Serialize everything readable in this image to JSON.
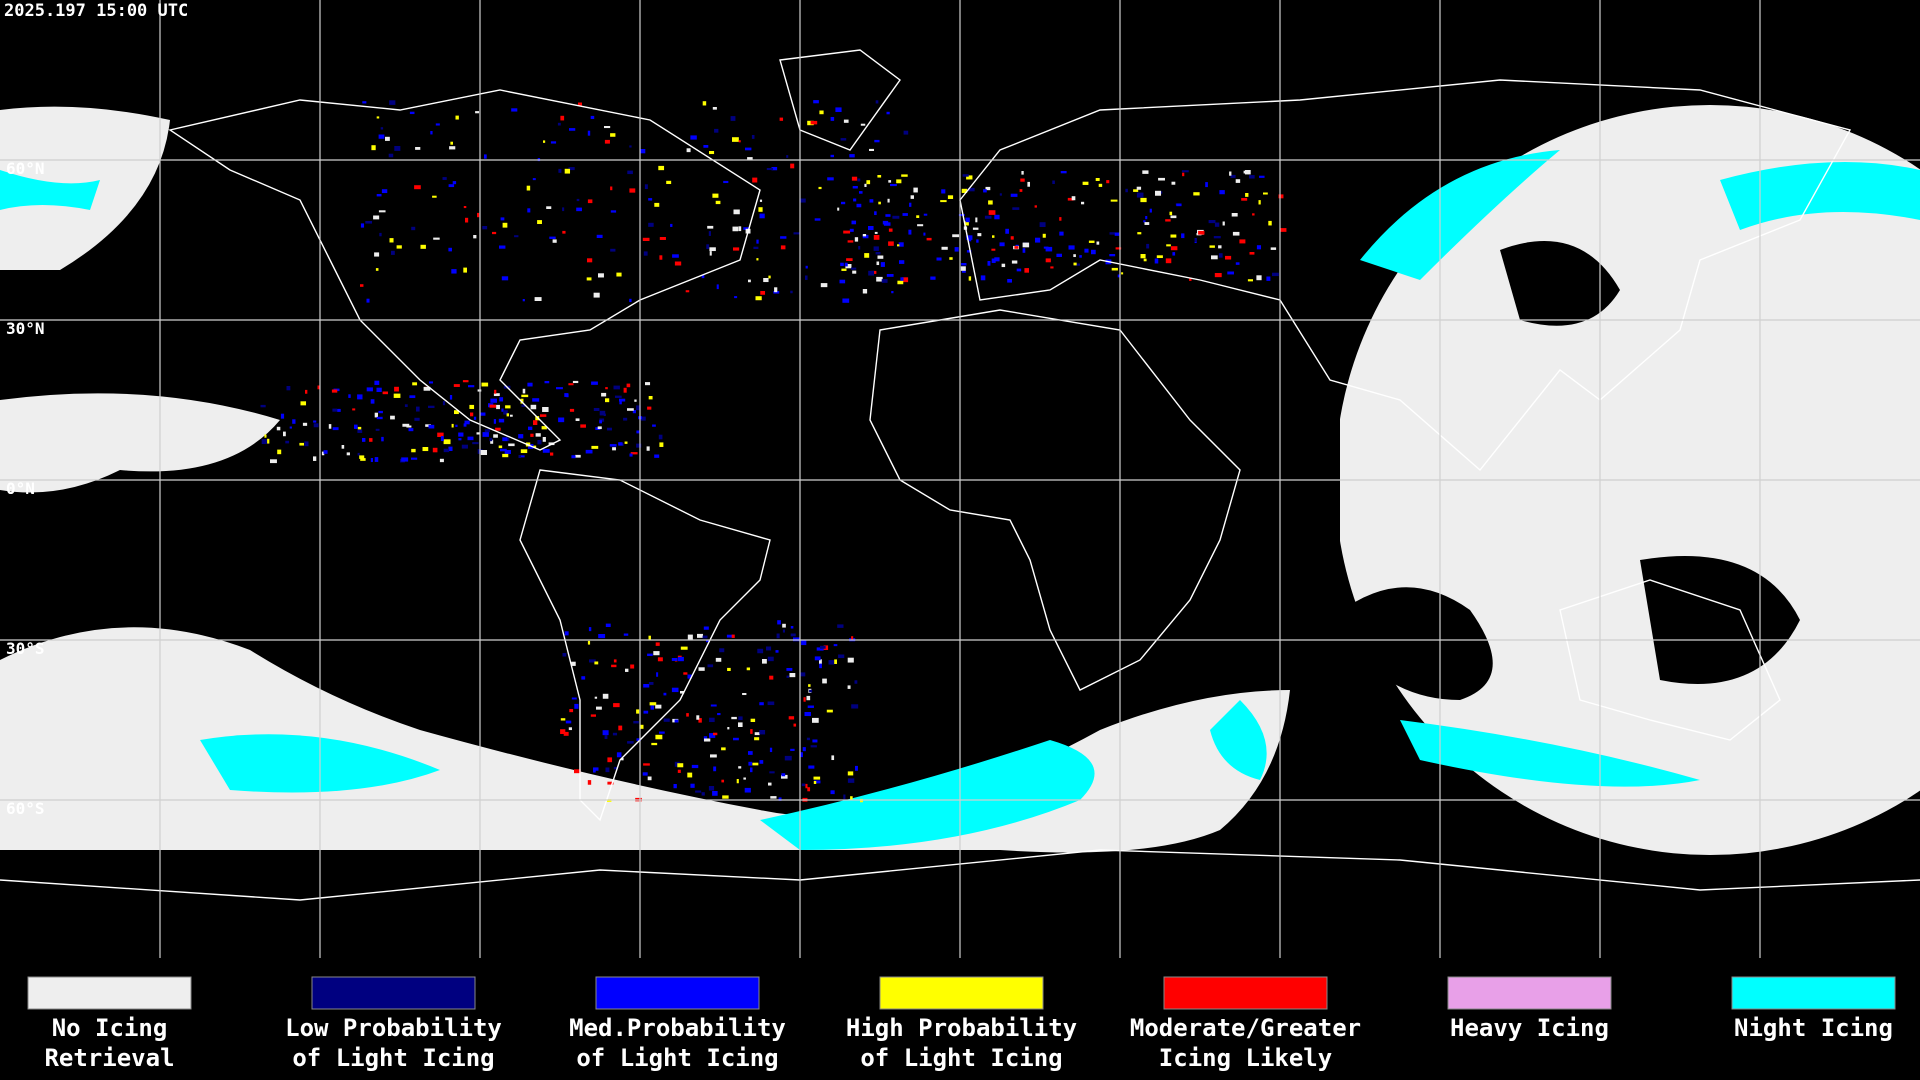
{
  "map": {
    "timestamp": "2025.197 15:00 UTC",
    "lat_labels": [
      "60°N",
      "30°N",
      "0°N",
      "30°S",
      "60°S"
    ],
    "legend": [
      {
        "line1": "No Icing",
        "line2": "Retrieval",
        "color": "#eeeeee"
      },
      {
        "line1": "Low Probability",
        "line2": "of Light Icing",
        "color": "#000080"
      },
      {
        "line1": "Med.Probability",
        "line2": "of Light Icing",
        "color": "#0000ff"
      },
      {
        "line1": "High Probability",
        "line2": "of Light Icing",
        "color": "#ffff00"
      },
      {
        "line1": "Moderate/Greater",
        "line2": "Icing Likely",
        "color": "#ff0000"
      },
      {
        "line1": "Heavy Icing",
        "line2": "",
        "color": "#e8a0e8"
      },
      {
        "line1": "Night Icing",
        "line2": "",
        "color": "#00ffff"
      }
    ]
  }
}
